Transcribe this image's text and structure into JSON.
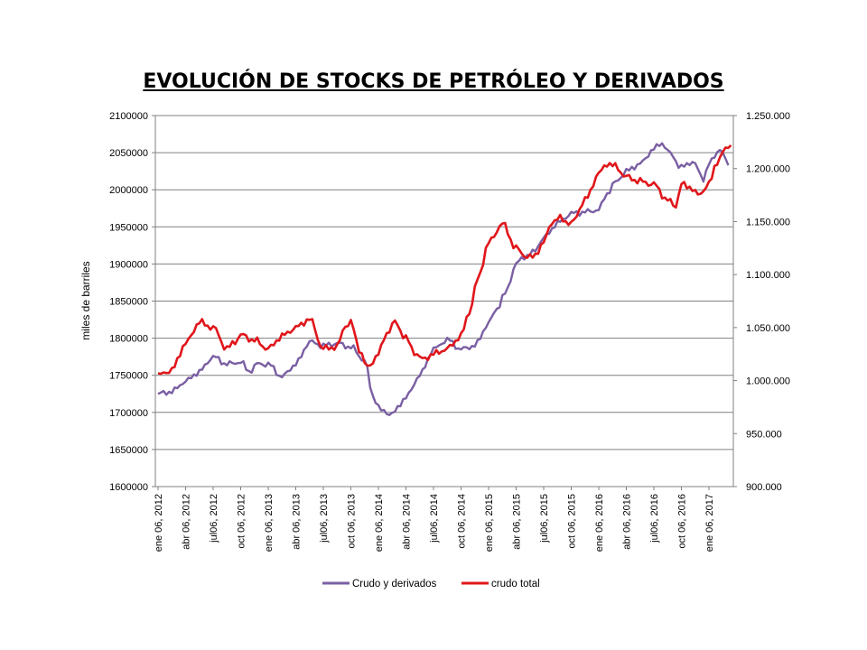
{
  "chart_data": {
    "type": "line",
    "title": "EVOLUCIÓN DE STOCKS DE PETRÓLEO Y DERIVADOS",
    "ylabel": "miles de barriles",
    "xlabel": "",
    "ylim": [
      1600000,
      2100000
    ],
    "y2lim": [
      900000,
      1250000
    ],
    "yticks": [
      "1600000",
      "1650000",
      "1700000",
      "1750000",
      "1800000",
      "1850000",
      "1900000",
      "1950000",
      "2000000",
      "2050000",
      "2100000"
    ],
    "y2ticks": [
      "900.000",
      "950.000",
      "1.000.000",
      "1.050.000",
      "1.100.000",
      "1.150.000",
      "1.200.000",
      "1.250.000"
    ],
    "xticks": [
      "ene 06, 2012",
      "abr 06, 2012",
      "jul06, 2012",
      "oct 06, 2012",
      "ene 06, 2013",
      "abr 06, 2013",
      "jul06, 2013",
      "oct 06, 2013",
      "ene 06, 2014",
      "abr 06, 2014",
      "jul06, 2014",
      "oct 06, 2014",
      "ene 06, 2015",
      "abr 06, 2015",
      "jul06, 2015",
      "oct 06, 2015",
      "ene 06, 2016",
      "abr 06, 2016",
      "jul06, 2016",
      "oct 06, 2016",
      "ene 06, 2017"
    ],
    "grid": true,
    "legend_position": "bottom",
    "series": [
      {
        "name": "Crudo y derivados",
        "axis": "left",
        "color": "#7a5fa3",
        "t": [
          0,
          0.5,
          1,
          1.5,
          2,
          2.5,
          3,
          3.3,
          3.6,
          4,
          4.5,
          5,
          5.5,
          6,
          6.5,
          7,
          7.5,
          7.8,
          8.1,
          8.5,
          9,
          9.5,
          10,
          10.5,
          11,
          11.5,
          12,
          12.3,
          12.6,
          13,
          13.3,
          13.6,
          14,
          14.5,
          15,
          15.5,
          16,
          16.3,
          16.6,
          17,
          17.5,
          18,
          18.3,
          18.6,
          19,
          19.4,
          19.8,
          20,
          20.4,
          20.7
        ],
        "values": [
          1725000,
          1728000,
          1742000,
          1755000,
          1775000,
          1765000,
          1768000,
          1755000,
          1765000,
          1765000,
          1748000,
          1765000,
          1795000,
          1790000,
          1793000,
          1788000,
          1770000,
          1722000,
          1702000,
          1698000,
          1720000,
          1750000,
          1785000,
          1798000,
          1785000,
          1790000,
          1820000,
          1840000,
          1860000,
          1900000,
          1910000,
          1915000,
          1935000,
          1955000,
          1968000,
          1970000,
          1973000,
          1995000,
          2010000,
          2025000,
          2035000,
          2055000,
          2063000,
          2048000,
          2030000,
          2038000,
          2015000,
          2035000,
          2055000,
          2033000
        ]
      },
      {
        "name": "crudo total",
        "axis": "right",
        "color": "#e0161b",
        "t": [
          0,
          0.5,
          1,
          1.5,
          2,
          2.5,
          2.8,
          3,
          3.5,
          4,
          4.5,
          5,
          5.5,
          6,
          6.5,
          6.8,
          7,
          7.3,
          7.6,
          8,
          8.3,
          8.6,
          9,
          9.3,
          9.6,
          10,
          10.5,
          11,
          11.3,
          11.6,
          12,
          12.5,
          13,
          13.3,
          13.6,
          14,
          14.3,
          14.6,
          15,
          15.5,
          16,
          16.3,
          16.6,
          17,
          17.5,
          18,
          18.5,
          18.8,
          19,
          19.3,
          19.6,
          20,
          20.3,
          20.6,
          20.8
        ],
        "values": [
          1005000,
          1010000,
          1035000,
          1055000,
          1050000,
          1030000,
          1037000,
          1043000,
          1038000,
          1030000,
          1042000,
          1050000,
          1058000,
          1030000,
          1032000,
          1052000,
          1055000,
          1030000,
          1012000,
          1025000,
          1045000,
          1055000,
          1040000,
          1027000,
          1020000,
          1025000,
          1030000,
          1042000,
          1065000,
          1095000,
          1130000,
          1148000,
          1125000,
          1118000,
          1116000,
          1130000,
          1150000,
          1153000,
          1148000,
          1170000,
          1195000,
          1205000,
          1202000,
          1192000,
          1188000,
          1185000,
          1170000,
          1165000,
          1185000,
          1183000,
          1175000,
          1185000,
          1207000,
          1218000,
          1222000
        ]
      }
    ]
  }
}
